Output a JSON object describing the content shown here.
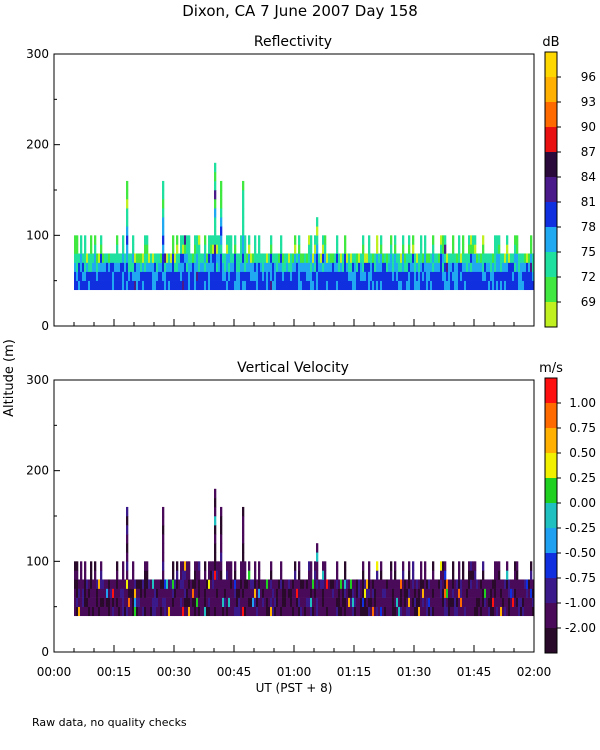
{
  "page_title": "Dixon, CA   7 June 2007   Day 158",
  "footnote": "Raw data, no quality checks",
  "shared_ylabel": "Altitude (m)",
  "chart_data": [
    {
      "type": "heatmap",
      "title": "Reflectivity",
      "xlabel": "UT  (PST + 8)",
      "ylabel": "Altitude (m)",
      "xlim_minutes": [
        0,
        120
      ],
      "ylim": [
        0,
        300
      ],
      "yticks": [
        0,
        100,
        200,
        300
      ],
      "xticks": [
        "00:00",
        "00:15",
        "00:30",
        "00:45",
        "01:00",
        "01:15",
        "01:30",
        "01:45",
        "02:00"
      ],
      "colorbar": {
        "unit": "dB",
        "labels": [
          "96",
          "93",
          "90",
          "87",
          "84",
          "81",
          "78",
          "75",
          "72",
          "69"
        ],
        "colors": [
          "#ffd700",
          "#ffb000",
          "#ff6a00",
          "#e81010",
          "#2a0a3a",
          "#4a1a8a",
          "#1030e0",
          "#20a8f0",
          "#20e0a0",
          "#40e840",
          "#c0f020"
        ]
      },
      "data_summary": {
        "start_minute": 5,
        "end_minute": 120,
        "base_altitude_m": 40,
        "typical_top_m": 80,
        "max_top_m": 180,
        "dominant_values_dB": [
          75,
          78,
          81
        ]
      }
    },
    {
      "type": "heatmap",
      "title": "Vertical Velocity",
      "xlabel": "UT  (PST + 8)",
      "ylabel": "Altitude (m)",
      "xlim_minutes": [
        0,
        120
      ],
      "ylim": [
        0,
        300
      ],
      "yticks": [
        0,
        100,
        200,
        300
      ],
      "xticks": [
        "00:00",
        "00:15",
        "00:30",
        "00:45",
        "01:00",
        "01:15",
        "01:30",
        "01:45",
        "02:00"
      ],
      "colorbar": {
        "unit": "m/s",
        "labels": [
          "1.00",
          "0.75",
          "0.50",
          "0.25",
          "0.00",
          "-0.25",
          "-0.50",
          "-0.75",
          "-1.00",
          "-2.00"
        ],
        "colors": [
          "#ff1010",
          "#ff6a00",
          "#ffb000",
          "#f0f000",
          "#20d020",
          "#20c0c0",
          "#20a0f0",
          "#1030e0",
          "#3a1a8a",
          "#4a0a5a",
          "#2a0a2a"
        ]
      },
      "data_summary": {
        "start_minute": 5,
        "end_minute": 120,
        "base_altitude_m": 40,
        "typical_top_m": 80,
        "max_top_m": 180,
        "dominant_values_m_s": [
          -1.0,
          -2.0
        ]
      }
    }
  ]
}
